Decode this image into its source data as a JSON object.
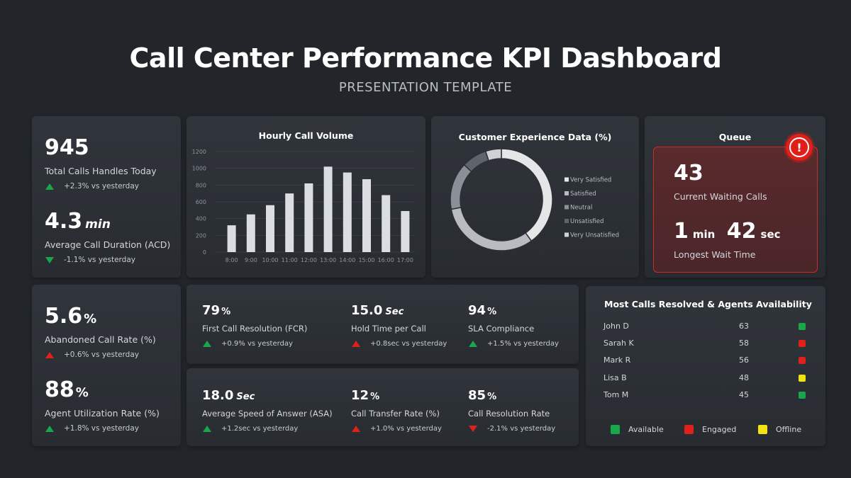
{
  "header": {
    "title": "Call Center Performance KPI Dashboard",
    "subtitle": "PRESENTATION TEMPLATE"
  },
  "colors": {
    "up_good": "#1aa64a",
    "bad": "#e0201b",
    "available": "#1aa64a",
    "engaged": "#e0201b",
    "offline": "#f2e30f"
  },
  "card1": {
    "kpi1": {
      "value": "945",
      "label": "Total Calls Handles Today",
      "delta": "+2.3% vs yesterday"
    },
    "kpi2": {
      "value": "4.3",
      "unit": "min",
      "label": "Average Call Duration (ACD)",
      "delta": "-1.1% vs yesterday"
    }
  },
  "hourly_chart": {
    "title": "Hourly Call Volume",
    "chart_data": {
      "type": "bar",
      "categories": [
        "8:00",
        "9:00",
        "10:00",
        "11:00",
        "12:00",
        "13:00",
        "14:00",
        "15:00",
        "16:00",
        "17:00"
      ],
      "values": [
        320,
        450,
        560,
        700,
        820,
        1020,
        950,
        870,
        680,
        490
      ],
      "yticks": [
        0,
        200,
        400,
        600,
        800,
        1000,
        1200
      ],
      "ylim": [
        0,
        1200
      ],
      "grid": true
    }
  },
  "cx_chart": {
    "title": "Customer Experience Data (%)",
    "chart_data": {
      "type": "pie",
      "categories": [
        "Very Satisfied",
        "Satisfied",
        "Neutral",
        "Unsatisfied",
        "Very Unsatisfied"
      ],
      "values": [
        40,
        32,
        15,
        8,
        5
      ],
      "colors": [
        "#e4e6e8",
        "#b8bcc1",
        "#8b9096",
        "#5e646b",
        "#cfd2d5"
      ],
      "legend": "right"
    }
  },
  "queue": {
    "title": "Queue",
    "alert_icon": "!",
    "waiting": {
      "value": "43",
      "label": "Current Waiting Calls"
    },
    "wait": {
      "min_value": "1",
      "min_unit": "min",
      "sec_value": "42",
      "sec_unit": "sec",
      "label": "Longest Wait Time"
    }
  },
  "card4": {
    "kpi1": {
      "value": "5.6",
      "unit": "%",
      "label": "Abandoned Call Rate (%)",
      "delta": "+0.6% vs yesterday"
    },
    "kpi2": {
      "value": "88",
      "unit": "%",
      "label": "Agent Utilization Rate (%)",
      "delta": "+1.8% vs yesterday"
    }
  },
  "row1": [
    {
      "value": "79",
      "unit": "%",
      "label": "First Call Resolution (FCR)",
      "delta": "+0.9% vs yesterday"
    },
    {
      "value": "15.0",
      "unit": "Sec",
      "label": "Hold Time per Call",
      "delta": "+0.8sec vs yesterday"
    },
    {
      "value": "94",
      "unit": "%",
      "label": "SLA Compliance",
      "delta": "+1.5% vs yesterday"
    }
  ],
  "row2": [
    {
      "value": "18.0",
      "unit": "Sec",
      "label": "Average Speed of Answer (ASA)",
      "delta": "+1.2sec vs yesterday"
    },
    {
      "value": "12",
      "unit": "%",
      "label": "Call Transfer Rate (%)",
      "delta": "+1.0% vs yesterday"
    },
    {
      "value": "85",
      "unit": "%",
      "label": "Call Resolution Rate",
      "delta": "-2.1% vs yesterday"
    }
  ],
  "agents": {
    "title": "Most Calls Resolved & Agents Availability",
    "rows": [
      {
        "name": "John D",
        "calls": "63",
        "status": "Available"
      },
      {
        "name": "Sarah K",
        "calls": "58",
        "status": "Engaged"
      },
      {
        "name": "Mark R",
        "calls": "56",
        "status": "Engaged"
      },
      {
        "name": "Lisa B",
        "calls": "48",
        "status": "Offline"
      },
      {
        "name": "Tom M",
        "calls": "45",
        "status": "Available"
      }
    ],
    "legend": [
      "Available",
      "Engaged",
      "Offline"
    ]
  }
}
